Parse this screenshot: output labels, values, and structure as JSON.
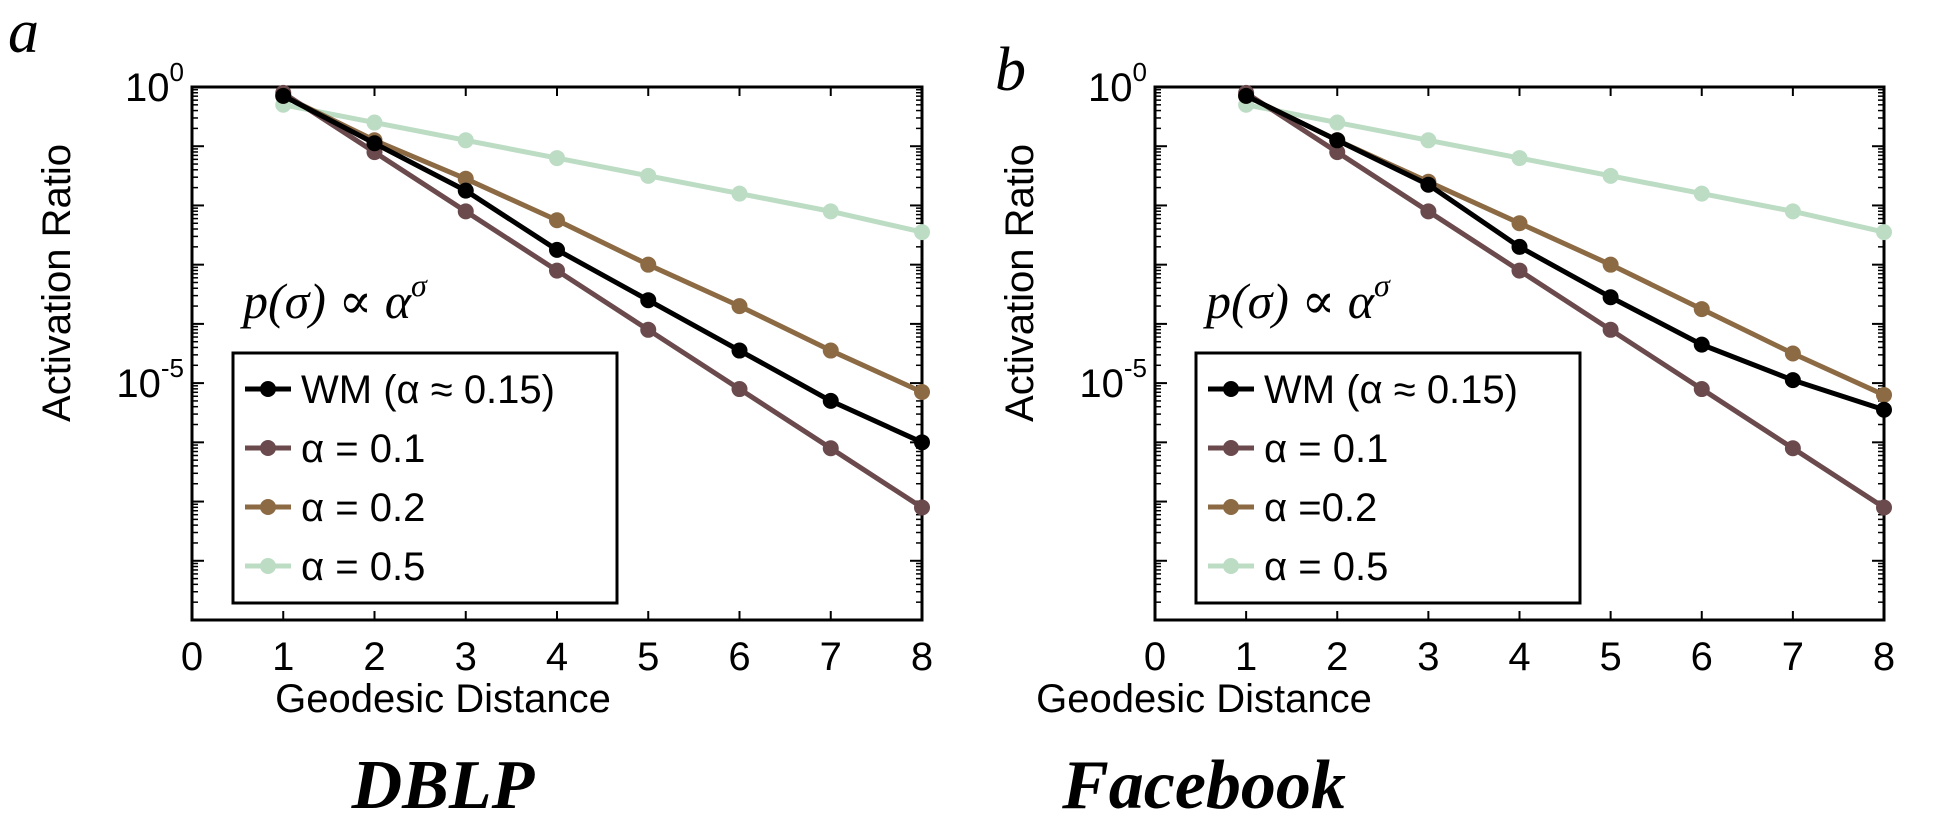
{
  "chart_data": [
    {
      "type": "line",
      "panel_label": "a",
      "title": "DBLP",
      "xlabel": "Geodesic Distance",
      "ylabel": "Activation Ratio",
      "xscale": "linear",
      "yscale": "log",
      "xlim": [
        0,
        8
      ],
      "ylim_exp": [
        -9,
        0
      ],
      "xticks": [
        "0",
        "1",
        "2",
        "3",
        "4",
        "5",
        "6",
        "7",
        "8"
      ],
      "yticks": [
        {
          "value": 0,
          "base": "10",
          "exp": "0"
        },
        {
          "value": -5,
          "base": "10",
          "exp": "-5"
        }
      ],
      "annotation": "p(σ) ∝ α^σ",
      "legend_position": "lower-left",
      "x": [
        1,
        2,
        3,
        4,
        5,
        6,
        7,
        8
      ],
      "series": [
        {
          "name": "WM (α ≈ 0.15)",
          "color": "#000000",
          "log10_values": [
            -0.15,
            -0.95,
            -1.75,
            -2.75,
            -3.6,
            -4.45,
            -5.3,
            -6.0
          ]
        },
        {
          "name": "α = 0.1",
          "color": "#6b4a4d",
          "log10_values": [
            -0.1,
            -1.1,
            -2.1,
            -3.1,
            -4.1,
            -5.1,
            -6.1,
            -7.1
          ]
        },
        {
          "name": "α = 0.2",
          "color": "#8c6a44",
          "log10_values": [
            -0.15,
            -0.9,
            -1.55,
            -2.25,
            -3.0,
            -3.7,
            -4.45,
            -5.15
          ]
        },
        {
          "name": "α = 0.5",
          "color": "#bcdcc4",
          "log10_values": [
            -0.3,
            -0.6,
            -0.9,
            -1.2,
            -1.5,
            -1.8,
            -2.1,
            -2.45
          ]
        }
      ]
    },
    {
      "type": "line",
      "panel_label": "b",
      "title": "Facebook",
      "xlabel": "Geodesic Distance",
      "ylabel": "Activation Ratio",
      "xscale": "linear",
      "yscale": "log",
      "xlim": [
        0,
        8
      ],
      "ylim_exp": [
        -9,
        0
      ],
      "xticks": [
        "0",
        "1",
        "2",
        "3",
        "4",
        "5",
        "6",
        "7",
        "8"
      ],
      "yticks": [
        {
          "value": 0,
          "base": "10",
          "exp": "0"
        },
        {
          "value": -5,
          "base": "10",
          "exp": "-5"
        }
      ],
      "annotation": "p(σ) ∝ α^σ",
      "legend_position": "lower-left",
      "x": [
        1,
        2,
        3,
        4,
        5,
        6,
        7,
        8
      ],
      "series": [
        {
          "name": "WM (α ≈ 0.15)",
          "color": "#000000",
          "log10_values": [
            -0.15,
            -0.9,
            -1.65,
            -2.7,
            -3.55,
            -4.35,
            -4.95,
            -5.45
          ]
        },
        {
          "name": "α = 0.1",
          "color": "#6b4a4d",
          "log10_values": [
            -0.1,
            -1.1,
            -2.1,
            -3.1,
            -4.1,
            -5.1,
            -6.1,
            -7.1
          ]
        },
        {
          "name": "α =0.2",
          "color": "#8c6a44",
          "log10_values": [
            -0.15,
            -0.9,
            -1.6,
            -2.3,
            -3.0,
            -3.75,
            -4.5,
            -5.2
          ]
        },
        {
          "name": "α = 0.5",
          "color": "#bcdcc4",
          "log10_values": [
            -0.3,
            -0.6,
            -0.9,
            -1.2,
            -1.5,
            -1.8,
            -2.1,
            -2.45
          ]
        }
      ]
    }
  ]
}
